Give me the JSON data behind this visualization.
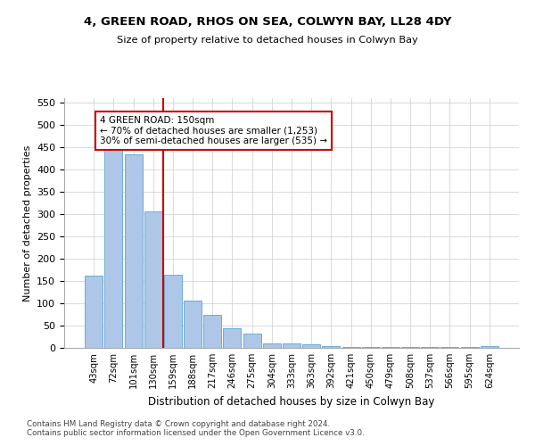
{
  "title1": "4, GREEN ROAD, RHOS ON SEA, COLWYN BAY, LL28 4DY",
  "title2": "Size of property relative to detached houses in Colwyn Bay",
  "xlabel": "Distribution of detached houses by size in Colwyn Bay",
  "ylabel": "Number of detached properties",
  "categories": [
    "43sqm",
    "72sqm",
    "101sqm",
    "130sqm",
    "159sqm",
    "188sqm",
    "217sqm",
    "246sqm",
    "275sqm",
    "304sqm",
    "333sqm",
    "363sqm",
    "392sqm",
    "421sqm",
    "450sqm",
    "479sqm",
    "508sqm",
    "537sqm",
    "566sqm",
    "595sqm",
    "624sqm"
  ],
  "values": [
    163,
    450,
    435,
    307,
    165,
    106,
    74,
    44,
    33,
    10,
    10,
    8,
    5,
    3,
    2,
    2,
    2,
    2,
    2,
    2,
    5
  ],
  "bar_color": "#aec6e8",
  "bar_edge_color": "#6baed6",
  "vline_x": 3.5,
  "vline_color": "#cc0000",
  "ylim": [
    0,
    560
  ],
  "yticks": [
    0,
    50,
    100,
    150,
    200,
    250,
    300,
    350,
    400,
    450,
    500,
    550
  ],
  "annotation_line1": "4 GREEN ROAD: 150sqm",
  "annotation_line2": "← 70% of detached houses are smaller (1,253)",
  "annotation_line3": "30% of semi-detached houses are larger (535) →",
  "annotation_box_color": "#ffffff",
  "annotation_box_edge": "#cc0000",
  "footnote1": "Contains HM Land Registry data © Crown copyright and database right 2024.",
  "footnote2": "Contains public sector information licensed under the Open Government Licence v3.0.",
  "bg_color": "#ffffff",
  "grid_color": "#cccccc",
  "fig_width": 6.0,
  "fig_height": 5.0,
  "dpi": 100
}
